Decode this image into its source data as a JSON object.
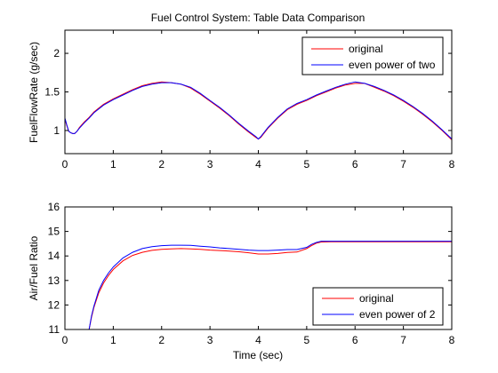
{
  "chart_data": [
    {
      "type": "line",
      "title": "Fuel Control System: Table Data Comparison",
      "xlabel": "",
      "ylabel": "FuelFlowRate (g/sec)",
      "xlim": [
        0,
        8
      ],
      "ylim": [
        0.7,
        2.3
      ],
      "xticks": [
        "0",
        "1",
        "2",
        "3",
        "4",
        "5",
        "6",
        "7",
        "8"
      ],
      "yticks": [
        "1",
        "1.5",
        "2"
      ],
      "legend_position": "top-right",
      "series": [
        {
          "name": "original",
          "color": "#ff0000",
          "x": [
            0,
            0.04,
            0.08,
            0.12,
            0.16,
            0.2,
            0.25,
            0.3,
            0.4,
            0.5,
            0.6,
            0.8,
            1.0,
            1.2,
            1.4,
            1.6,
            1.8,
            2.0,
            2.2,
            2.4,
            2.6,
            2.8,
            3.0,
            3.2,
            3.4,
            3.6,
            3.8,
            3.95,
            4.0,
            4.05,
            4.2,
            4.4,
            4.6,
            4.8,
            5.0,
            5.2,
            5.4,
            5.6,
            5.8,
            6.0,
            6.2,
            6.4,
            6.6,
            6.8,
            7.0,
            7.2,
            7.4,
            7.6,
            7.8,
            8.0
          ],
          "values": [
            1.15,
            1.06,
            0.99,
            0.97,
            0.96,
            0.96,
            0.99,
            1.04,
            1.11,
            1.17,
            1.24,
            1.34,
            1.41,
            1.47,
            1.53,
            1.58,
            1.61,
            1.63,
            1.62,
            1.6,
            1.55,
            1.47,
            1.38,
            1.29,
            1.19,
            1.08,
            0.98,
            0.91,
            0.89,
            0.91,
            1.03,
            1.16,
            1.27,
            1.34,
            1.39,
            1.45,
            1.5,
            1.55,
            1.59,
            1.61,
            1.61,
            1.56,
            1.51,
            1.45,
            1.38,
            1.3,
            1.21,
            1.11,
            1.0,
            0.88
          ]
        },
        {
          "name": "even power of two",
          "color": "#0000ff",
          "x": [
            0,
            0.04,
            0.08,
            0.12,
            0.16,
            0.2,
            0.25,
            0.3,
            0.4,
            0.5,
            0.6,
            0.8,
            1.0,
            1.2,
            1.4,
            1.6,
            1.8,
            2.0,
            2.2,
            2.4,
            2.6,
            2.8,
            3.0,
            3.2,
            3.4,
            3.6,
            3.8,
            3.95,
            4.0,
            4.05,
            4.2,
            4.4,
            4.6,
            4.8,
            5.0,
            5.2,
            5.4,
            5.6,
            5.8,
            6.0,
            6.2,
            6.4,
            6.6,
            6.8,
            7.0,
            7.2,
            7.4,
            7.6,
            7.8,
            8.0
          ],
          "values": [
            1.16,
            1.07,
            0.99,
            0.97,
            0.96,
            0.96,
            0.99,
            1.03,
            1.1,
            1.16,
            1.23,
            1.33,
            1.4,
            1.46,
            1.52,
            1.57,
            1.6,
            1.62,
            1.62,
            1.6,
            1.56,
            1.48,
            1.39,
            1.3,
            1.2,
            1.09,
            0.99,
            0.92,
            0.89,
            0.92,
            1.04,
            1.17,
            1.28,
            1.35,
            1.4,
            1.46,
            1.51,
            1.56,
            1.6,
            1.63,
            1.61,
            1.57,
            1.52,
            1.46,
            1.39,
            1.31,
            1.22,
            1.12,
            1.01,
            0.89
          ]
        }
      ]
    },
    {
      "type": "line",
      "title": "",
      "xlabel": "Time (sec)",
      "ylabel": "Air/Fuel Ratio",
      "xlim": [
        0,
        8
      ],
      "ylim": [
        11,
        16
      ],
      "xticks": [
        "0",
        "1",
        "2",
        "3",
        "4",
        "5",
        "6",
        "7",
        "8"
      ],
      "yticks": [
        "11",
        "12",
        "13",
        "14",
        "15",
        "16"
      ],
      "legend_position": "bottom-right",
      "series": [
        {
          "name": "original",
          "color": "#ff0000",
          "x": [
            0.5,
            0.55,
            0.6,
            0.7,
            0.8,
            0.9,
            1.0,
            1.2,
            1.4,
            1.6,
            1.8,
            2.0,
            2.2,
            2.4,
            2.6,
            2.8,
            3.0,
            3.2,
            3.4,
            3.6,
            3.8,
            4.0,
            4.2,
            4.4,
            4.6,
            4.8,
            5.0,
            5.1,
            5.2,
            5.3,
            5.5,
            6.0,
            6.5,
            7.0,
            7.5,
            8.0
          ],
          "values": [
            11.0,
            11.5,
            11.9,
            12.5,
            12.9,
            13.2,
            13.45,
            13.8,
            14.02,
            14.15,
            14.23,
            14.27,
            14.29,
            14.3,
            14.29,
            14.27,
            14.24,
            14.22,
            14.2,
            14.17,
            14.13,
            14.08,
            14.08,
            14.1,
            14.14,
            14.16,
            14.3,
            14.42,
            14.52,
            14.57,
            14.58,
            14.58,
            14.58,
            14.58,
            14.58,
            14.58
          ]
        },
        {
          "name": "even power of 2",
          "color": "#0000ff",
          "x": [
            0.5,
            0.55,
            0.6,
            0.7,
            0.8,
            0.9,
            1.0,
            1.2,
            1.4,
            1.6,
            1.8,
            2.0,
            2.2,
            2.4,
            2.6,
            2.8,
            3.0,
            3.2,
            3.4,
            3.6,
            3.8,
            4.0,
            4.2,
            4.4,
            4.6,
            4.8,
            5.0,
            5.1,
            5.2,
            5.3,
            5.5,
            6.0,
            6.5,
            7.0,
            7.5,
            8.0
          ],
          "values": [
            11.0,
            11.55,
            11.95,
            12.6,
            13.0,
            13.3,
            13.55,
            13.92,
            14.15,
            14.3,
            14.38,
            14.42,
            14.44,
            14.44,
            14.43,
            14.4,
            14.37,
            14.33,
            14.3,
            14.27,
            14.24,
            14.22,
            14.22,
            14.24,
            14.26,
            14.26,
            14.35,
            14.47,
            14.55,
            14.6,
            14.6,
            14.6,
            14.6,
            14.6,
            14.6,
            14.6
          ]
        }
      ]
    }
  ]
}
